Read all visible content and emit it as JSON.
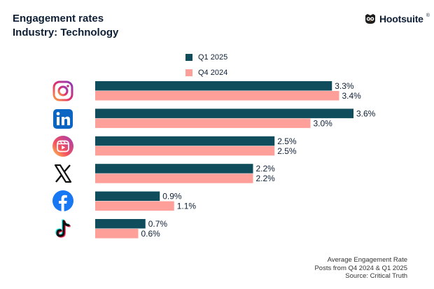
{
  "header": {
    "title": "Engagement rates",
    "subtitle": "Industry: Technology"
  },
  "brand": {
    "name": "Hootsuite",
    "registered_mark": "®",
    "logo_icon": "owl-icon"
  },
  "legend": [
    {
      "label": "Q1 2025",
      "color": "#0f4c5c"
    },
    {
      "label": "Q4 2024",
      "color": "#ff9f9a"
    }
  ],
  "footer": {
    "line1": "Average Engagement Rate",
    "line2": "Posts from Q4 2024 & Q1 2025",
    "line3": "Source: Critical Truth"
  },
  "chart_data": {
    "type": "bar",
    "orientation": "horizontal",
    "title": "Engagement rates",
    "subtitle": "Industry: Technology",
    "categories": [
      "instagram-icon",
      "linkedin-icon",
      "instagram-reels-icon",
      "x-icon",
      "facebook-icon",
      "tiktok-icon"
    ],
    "series": [
      {
        "name": "Q1 2025",
        "color": "#0f4c5c",
        "values": [
          3.3,
          3.6,
          2.5,
          2.2,
          0.9,
          0.7
        ],
        "labels": [
          "3.3%",
          "3.6%",
          "2.5%",
          "2.2%",
          "0.9%",
          "0.7%"
        ]
      },
      {
        "name": "Q4 2024",
        "color": "#ff9f9a",
        "values": [
          3.4,
          3.0,
          2.5,
          2.2,
          1.1,
          0.6
        ],
        "labels": [
          "3.4%",
          "3.0%",
          "2.5%",
          "2.2%",
          "1.1%",
          "0.6%"
        ]
      }
    ],
    "xlim": [
      0,
      4.5
    ],
    "unit": "%",
    "grid": false,
    "legend_position": "top"
  }
}
